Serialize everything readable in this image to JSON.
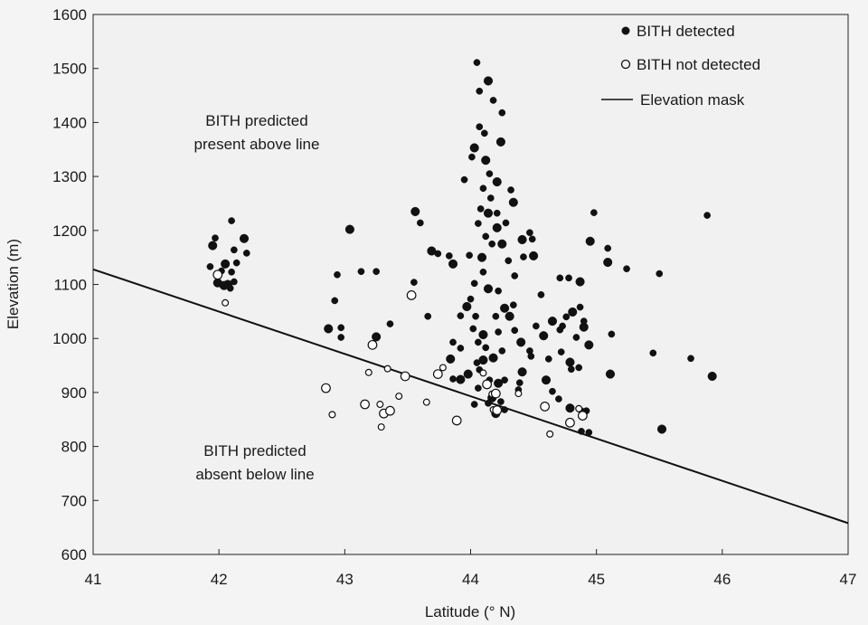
{
  "chart_data": {
    "type": "scatter",
    "xlabel": "Latitude (° N)",
    "ylabel": "Elevation (m)",
    "xlim": [
      41,
      47
    ],
    "ylim": [
      600,
      1600
    ],
    "x_ticks": [
      41,
      42,
      43,
      44,
      45,
      46,
      47
    ],
    "y_ticks": [
      600,
      700,
      800,
      900,
      1000,
      1100,
      1200,
      1300,
      1400,
      1500,
      1600
    ],
    "grid": false,
    "legend_position": "top-right",
    "legend": [
      {
        "label": "BITH detected",
        "marker": "filled-circle"
      },
      {
        "label": "BITH not detected",
        "marker": "open-circle"
      },
      {
        "label": "Elevation mask",
        "marker": "line"
      }
    ],
    "annotations": {
      "above": [
        "BITH predicted",
        "present above line"
      ],
      "below": [
        "BITH predicted",
        "absent below line"
      ]
    },
    "elevation_mask": {
      "x": [
        41,
        47
      ],
      "y": [
        1128,
        658
      ]
    },
    "series": [
      {
        "name": "BITH detected",
        "marker": "filled",
        "points": [
          [
            41.95,
            1172
          ],
          [
            41.97,
            1186
          ],
          [
            42.1,
            1218
          ],
          [
            42.05,
            1138
          ],
          [
            41.93,
            1133
          ],
          [
            42.02,
            1125
          ],
          [
            41.99,
            1103
          ],
          [
            42.12,
            1164
          ],
          [
            42.14,
            1140
          ],
          [
            42.2,
            1185
          ],
          [
            42.22,
            1158
          ],
          [
            42.1,
            1123
          ],
          [
            42.07,
            1100
          ],
          [
            42.12,
            1105
          ],
          [
            42.09,
            1093
          ],
          [
            42.04,
            1098
          ],
          [
            42.94,
            1118
          ],
          [
            42.92,
            1070
          ],
          [
            42.87,
            1018
          ],
          [
            42.97,
            1020
          ],
          [
            42.97,
            1002
          ],
          [
            43.04,
            1202
          ],
          [
            43.13,
            1124
          ],
          [
            43.25,
            1124
          ],
          [
            43.25,
            1003
          ],
          [
            43.36,
            1027
          ],
          [
            43.55,
            1104
          ],
          [
            43.56,
            1235
          ],
          [
            43.6,
            1214
          ],
          [
            43.66,
            1041
          ],
          [
            43.69,
            1162
          ],
          [
            43.74,
            1157
          ],
          [
            43.83,
            1153
          ],
          [
            43.86,
            1138
          ],
          [
            43.86,
            993
          ],
          [
            43.86,
            925
          ],
          [
            43.84,
            962
          ],
          [
            44.05,
            1511
          ],
          [
            44.07,
            1458
          ],
          [
            44.14,
            1477
          ],
          [
            44.18,
            1441
          ],
          [
            44.25,
            1418
          ],
          [
            44.03,
            1353
          ],
          [
            44.07,
            1392
          ],
          [
            44.11,
            1380
          ],
          [
            44.12,
            1330
          ],
          [
            44.01,
            1336
          ],
          [
            44.15,
            1305
          ],
          [
            44.24,
            1364
          ],
          [
            43.95,
            1294
          ],
          [
            44.1,
            1278
          ],
          [
            44.21,
            1290
          ],
          [
            44.16,
            1260
          ],
          [
            44.32,
            1275
          ],
          [
            44.34,
            1252
          ],
          [
            44.08,
            1240
          ],
          [
            44.06,
            1213
          ],
          [
            44.14,
            1232
          ],
          [
            44.21,
            1232
          ],
          [
            44.28,
            1214
          ],
          [
            44.21,
            1205
          ],
          [
            43.99,
            1154
          ],
          [
            44.12,
            1189
          ],
          [
            44.09,
            1150
          ],
          [
            44.17,
            1175
          ],
          [
            44.1,
            1123
          ],
          [
            44.25,
            1175
          ],
          [
            44.3,
            1144
          ],
          [
            44.35,
            1116
          ],
          [
            44.41,
            1183
          ],
          [
            44.47,
            1196
          ],
          [
            44.49,
            1184
          ],
          [
            44.5,
            1153
          ],
          [
            44.42,
            1151
          ],
          [
            44.34,
            1062
          ],
          [
            44.14,
            1092
          ],
          [
            44.03,
            1102
          ],
          [
            44.22,
            1088
          ],
          [
            44.27,
            1056
          ],
          [
            44.04,
            1041
          ],
          [
            44.2,
            1041
          ],
          [
            44.31,
            1041
          ],
          [
            44.35,
            1015
          ],
          [
            44.02,
            1018
          ],
          [
            44.1,
            1007
          ],
          [
            44.06,
            993
          ],
          [
            44.12,
            983
          ],
          [
            44.18,
            964
          ],
          [
            44.22,
            1012
          ],
          [
            44.25,
            977
          ],
          [
            44.1,
            960
          ],
          [
            44.05,
            955
          ],
          [
            43.92,
            982
          ],
          [
            43.97,
            1059
          ],
          [
            43.92,
            1042
          ],
          [
            44.0,
            1073
          ],
          [
            44.4,
            993
          ],
          [
            44.47,
            977
          ],
          [
            44.48,
            967
          ],
          [
            44.41,
            938
          ],
          [
            44.38,
            905
          ],
          [
            44.39,
            918
          ],
          [
            43.98,
            934
          ],
          [
            44.07,
            942
          ],
          [
            44.15,
            923
          ],
          [
            44.22,
            917
          ],
          [
            44.27,
            923
          ],
          [
            44.06,
            908
          ],
          [
            44.17,
            890
          ],
          [
            44.24,
            883
          ],
          [
            44.27,
            868
          ],
          [
            43.92,
            924
          ],
          [
            44.03,
            878
          ],
          [
            44.14,
            880
          ],
          [
            44.2,
            861
          ],
          [
            44.52,
            1023
          ],
          [
            44.56,
            1081
          ],
          [
            44.65,
            1032
          ],
          [
            44.71,
            1112
          ],
          [
            44.78,
            1112
          ],
          [
            44.87,
            1105
          ],
          [
            44.76,
            1040
          ],
          [
            44.73,
            1023
          ],
          [
            44.81,
            1049
          ],
          [
            44.87,
            1058
          ],
          [
            44.71,
            1016
          ],
          [
            44.58,
            1005
          ],
          [
            44.62,
            962
          ],
          [
            44.72,
            975
          ],
          [
            44.79,
            956
          ],
          [
            44.8,
            943
          ],
          [
            44.86,
            946
          ],
          [
            44.6,
            923
          ],
          [
            44.65,
            902
          ],
          [
            44.7,
            888
          ],
          [
            44.79,
            871
          ],
          [
            44.88,
            866
          ],
          [
            44.92,
            866
          ],
          [
            44.9,
            1021
          ],
          [
            44.84,
            1002
          ],
          [
            44.9,
            1032
          ],
          [
            44.94,
            988
          ],
          [
            44.88,
            828
          ],
          [
            44.94,
            826
          ],
          [
            44.95,
            1180
          ],
          [
            44.98,
            1233
          ],
          [
            45.09,
            1167
          ],
          [
            45.09,
            1141
          ],
          [
            45.24,
            1129
          ],
          [
            45.12,
            1008
          ],
          [
            45.11,
            934
          ],
          [
            45.5,
            1120
          ],
          [
            45.45,
            973
          ],
          [
            45.52,
            832
          ],
          [
            45.75,
            963
          ],
          [
            45.88,
            1228
          ],
          [
            45.92,
            930
          ]
        ]
      },
      {
        "name": "BITH not detected",
        "marker": "open",
        "points": [
          [
            41.99,
            1118
          ],
          [
            42.05,
            1066
          ],
          [
            42.85,
            908
          ],
          [
            42.9,
            859
          ],
          [
            43.16,
            878
          ],
          [
            43.19,
            937
          ],
          [
            43.22,
            988
          ],
          [
            43.28,
            878
          ],
          [
            43.31,
            861
          ],
          [
            43.34,
            944
          ],
          [
            43.36,
            866
          ],
          [
            43.43,
            893
          ],
          [
            43.48,
            930
          ],
          [
            43.29,
            836
          ],
          [
            43.53,
            1080
          ],
          [
            43.65,
            882
          ],
          [
            43.74,
            934
          ],
          [
            43.78,
            946
          ],
          [
            43.89,
            848
          ],
          [
            44.1,
            936
          ],
          [
            44.13,
            915
          ],
          [
            44.17,
            897
          ],
          [
            44.2,
            898
          ],
          [
            44.18,
            868
          ],
          [
            44.21,
            867
          ],
          [
            44.38,
            898
          ],
          [
            44.59,
            874
          ],
          [
            44.63,
            823
          ],
          [
            44.79,
            844
          ],
          [
            44.86,
            870
          ],
          [
            44.89,
            857
          ]
        ]
      }
    ]
  }
}
